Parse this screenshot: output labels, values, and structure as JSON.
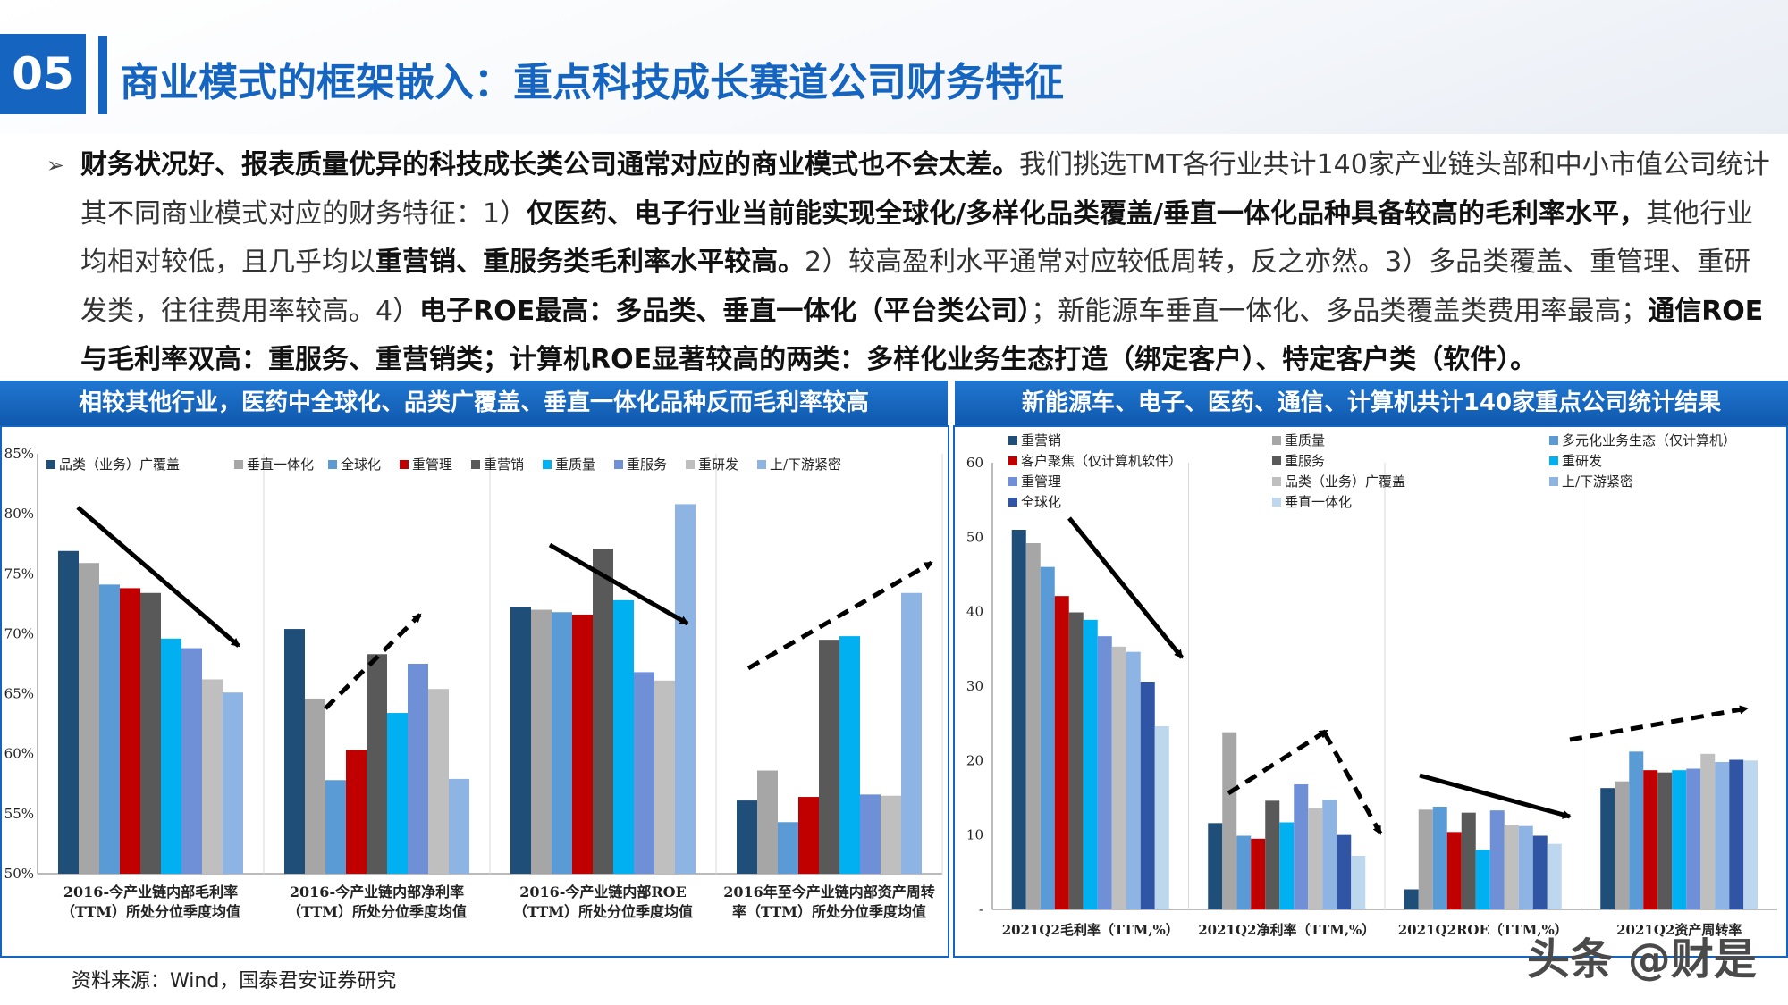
{
  "header": {
    "section_number": "05",
    "title": "商业模式的框架嵌入：重点科技成长赛道公司财务特征"
  },
  "summary": {
    "bullet": "➢",
    "segments": [
      {
        "text": "财务状况好、报表质量优异的科技成长类公司通常对应的商业模式也不会太差。",
        "bold": true
      },
      {
        "text": "我们挑选TMT各行业共计140家产业链头部和中小市值公司统计其不同商业模式对应的财务特征：1）",
        "bold": false
      },
      {
        "text": "仅医药、电子行业当前能实现全球化/多样化品类覆盖/垂直一体化品种具备较高的毛利率水平，",
        "bold": true
      },
      {
        "text": "其他行业均相对较低，且几乎均以",
        "bold": false
      },
      {
        "text": "重营销、重服务类毛利率水平较高。",
        "bold": true
      },
      {
        "text": "2）较高盈利水平通常对应较低周转，反之亦然。3）多品类覆盖、重管理、重研发类，往往费用率较高。4）",
        "bold": false
      },
      {
        "text": "电子ROE最高：多品类、垂直一体化（平台类公司）",
        "bold": true
      },
      {
        "text": "；新能源车垂直一体化、多品类覆盖类费用率最高；",
        "bold": false
      },
      {
        "text": "通信ROE与毛利率双高：重服务、重营销类；计算机ROE显著较高的两类：多样化业务生态打造（绑定客户）、特定客户类（软件）。",
        "bold": true
      }
    ]
  },
  "left_panel": {
    "header": "相较其他行业，医药中全球化、品类广覆盖、垂直一体化品种反而毛利率较高"
  },
  "right_panel": {
    "header": "新能源车、电子、医药、通信、计算机共计140家重点公司统计结果"
  },
  "footer": {
    "source": "资料来源：Wind，国泰君安证券研究",
    "watermark": "头条 @财是"
  },
  "chart_data": [
    {
      "type": "bar",
      "ylim": [
        50,
        85
      ],
      "yticks": [
        "50%",
        "55%",
        "60%",
        "65%",
        "70%",
        "75%",
        "80%",
        "85%"
      ],
      "legend_position": "top",
      "grid": true,
      "categories": [
        "2016-今产业链内部毛利率（TTM）所处分位季度均值",
        "2016-今产业链内部净利率（TTM）所处分位季度均值",
        "2016-今产业链内部ROE（TTM）所处分位季度均值",
        "2016年至今产业链内部资产周转率（TTM）所处分位季度均值"
      ],
      "category_lines": [
        [
          "2016-今产业链内部毛利率",
          "（TTM）所处分位季度均值"
        ],
        [
          "2016-今产业链内部净利率",
          "（TTM）所处分位季度均值"
        ],
        [
          "2016-今产业链内部ROE",
          "（TTM）所处分位季度均值"
        ],
        [
          "2016年至今产业链内部资产周转",
          "率（TTM）所处分位季度均值"
        ]
      ],
      "series": [
        {
          "name": "品类（业务）广覆盖",
          "color": "#1f4e79",
          "values": [
            76.9,
            70.4,
            72.2,
            56.1
          ]
        },
        {
          "name": "垂直一体化",
          "color": "#a6a6a6",
          "values": [
            75.9,
            64.6,
            72.0,
            58.6
          ]
        },
        {
          "name": "全球化",
          "color": "#5b9bd5",
          "values": [
            74.1,
            57.8,
            71.8,
            54.3
          ]
        },
        {
          "name": "重管理",
          "color": "#c00000",
          "values": [
            73.8,
            60.3,
            71.6,
            56.4
          ]
        },
        {
          "name": "重营销",
          "color": "#595959",
          "values": [
            73.4,
            68.3,
            77.1,
            69.5
          ]
        },
        {
          "name": "重质量",
          "color": "#00b0f0",
          "values": [
            69.6,
            63.4,
            72.8,
            69.8
          ]
        },
        {
          "name": "重服务",
          "color": "#6f8fd6",
          "values": [
            68.8,
            67.5,
            66.8,
            56.6
          ]
        },
        {
          "name": "重研发",
          "color": "#bfbfbf",
          "values": [
            66.2,
            65.4,
            66.1,
            56.5
          ]
        },
        {
          "name": "上/下游紧密",
          "color": "#8db4e2",
          "values": [
            65.1,
            57.9,
            80.8,
            73.4
          ]
        }
      ],
      "trend_arrows": [
        "solid-down",
        "dashed-up",
        "solid-down",
        "dashed-up"
      ]
    },
    {
      "type": "bar",
      "ylim": [
        0,
        60
      ],
      "yticks": [
        "-",
        "10",
        "20",
        "30",
        "40",
        "50",
        "60"
      ],
      "legend_position": "top",
      "grid": true,
      "categories": [
        "2021Q2毛利率（TTM,%）",
        "2021Q2净利率（TTM,%）",
        "2021Q2ROE（TTM,%）",
        "2021Q2资产周转率"
      ],
      "series": [
        {
          "name": "重营销",
          "color": "#1f4e79",
          "values": [
            51.0,
            11.6,
            2.7,
            16.3
          ]
        },
        {
          "name": "重质量",
          "color": "#a6a6a6",
          "values": [
            49.2,
            23.8,
            13.4,
            17.2
          ]
        },
        {
          "name": "多元化业务生态（仅计算机）",
          "color": "#5b9bd5",
          "values": [
            46.0,
            9.9,
            13.8,
            21.2
          ]
        },
        {
          "name": "客户聚焦（仅计算机软件）",
          "color": "#c00000",
          "values": [
            42.1,
            9.5,
            10.4,
            18.7
          ]
        },
        {
          "name": "重服务",
          "color": "#595959",
          "values": [
            39.9,
            14.6,
            13.0,
            18.4
          ]
        },
        {
          "name": "重研发",
          "color": "#00b0f0",
          "values": [
            38.9,
            11.7,
            8.0,
            18.7
          ]
        },
        {
          "name": "重管理",
          "color": "#6f8fd6",
          "values": [
            36.7,
            16.8,
            13.3,
            18.9
          ]
        },
        {
          "name": "品类（业务）广覆盖",
          "color": "#bfbfbf",
          "values": [
            35.3,
            13.6,
            11.4,
            20.9
          ]
        },
        {
          "name": "上/下游紧密",
          "color": "#8db4e2",
          "values": [
            34.6,
            14.7,
            11.2,
            19.8
          ]
        },
        {
          "name": "全球化",
          "color": "#2f55a4",
          "values": [
            30.6,
            10.0,
            9.9,
            20.1
          ]
        },
        {
          "name": "垂直一体化",
          "color": "#bdd7ee",
          "values": [
            24.6,
            7.2,
            8.8,
            20.0
          ]
        }
      ],
      "trend_arrows": [
        "solid-down",
        "dashed-up-down",
        "solid-down",
        "dashed-up"
      ]
    }
  ]
}
